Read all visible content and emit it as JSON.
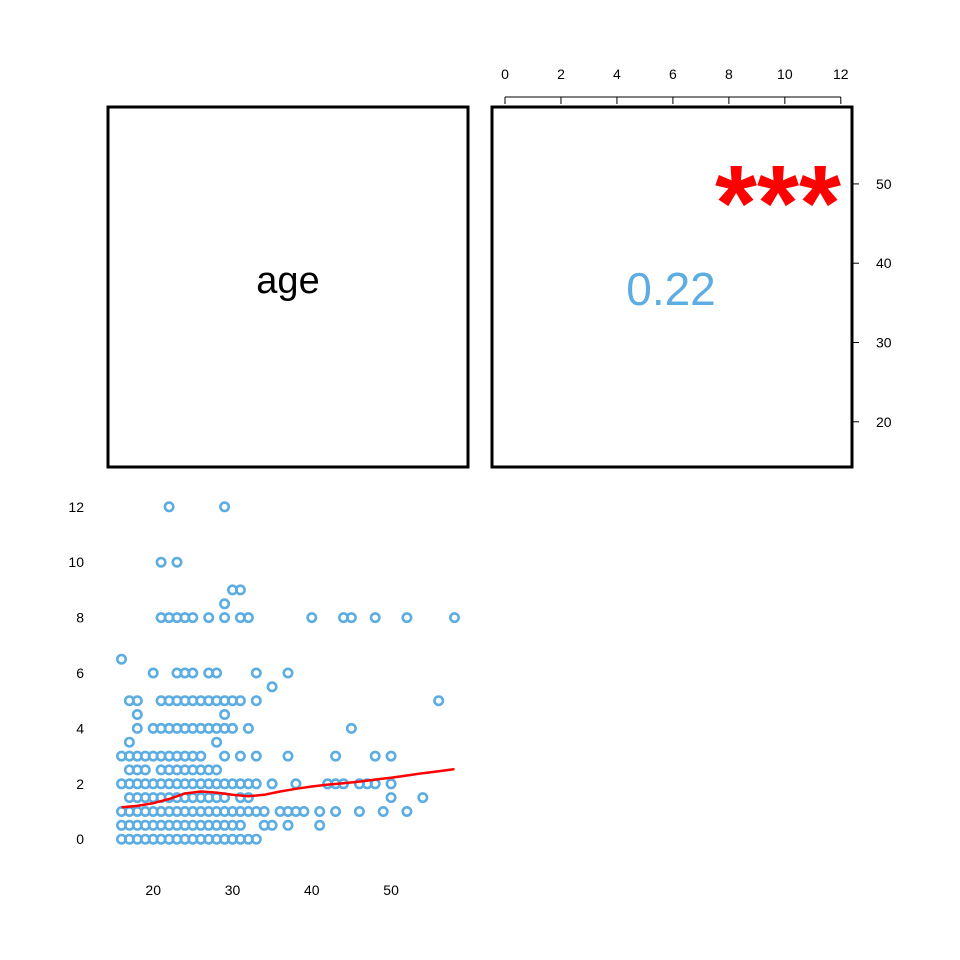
{
  "chart_data": [
    {
      "type": "text",
      "panel": "diagonal",
      "variable_label": "age"
    },
    {
      "type": "text",
      "panel": "upper-correlation",
      "correlation": "0.22",
      "significance": "***",
      "colors": {
        "correlation": "#5DADE2",
        "significance": "#FF0000"
      },
      "top_axis": {
        "ticks": [
          "0",
          "2",
          "4",
          "6",
          "8",
          "10",
          "12"
        ],
        "range": [
          0,
          12.4
        ]
      },
      "right_axis": {
        "ticks": [
          "20",
          "30",
          "40",
          "50"
        ],
        "range": [
          14.3,
          59.7
        ]
      }
    },
    {
      "type": "scatter",
      "panel": "lower-scatter",
      "xlim": [
        14.3,
        59.7
      ],
      "ylim": [
        -0.5,
        12.5
      ],
      "x_ticks": [
        "20",
        "30",
        "40",
        "50"
      ],
      "y_ticks": [
        "0",
        "2",
        "4",
        "6",
        "8",
        "10",
        "12"
      ],
      "grid": false,
      "colors": {
        "points": "#5DADE2",
        "smooth": "#FF0000"
      },
      "points": [
        [
          16,
          0
        ],
        [
          16,
          0.5
        ],
        [
          16,
          1
        ],
        [
          16,
          2
        ],
        [
          16,
          3
        ],
        [
          16,
          6.5
        ],
        [
          17,
          0
        ],
        [
          17,
          0.5
        ],
        [
          17,
          1
        ],
        [
          17,
          1.5
        ],
        [
          17,
          2
        ],
        [
          17,
          2.5
        ],
        [
          17,
          3
        ],
        [
          17,
          3.5
        ],
        [
          17,
          5
        ],
        [
          18,
          0
        ],
        [
          18,
          0.5
        ],
        [
          18,
          1
        ],
        [
          18,
          1.5
        ],
        [
          18,
          2
        ],
        [
          18,
          2.5
        ],
        [
          18,
          3
        ],
        [
          18,
          4
        ],
        [
          18,
          4.5
        ],
        [
          18,
          5
        ],
        [
          19,
          0
        ],
        [
          19,
          0.5
        ],
        [
          19,
          1
        ],
        [
          19,
          1.5
        ],
        [
          19,
          2
        ],
        [
          19,
          2.5
        ],
        [
          19,
          3
        ],
        [
          20,
          0
        ],
        [
          20,
          0.5
        ],
        [
          20,
          1
        ],
        [
          20,
          1.5
        ],
        [
          20,
          2
        ],
        [
          20,
          3
        ],
        [
          20,
          4
        ],
        [
          20,
          6
        ],
        [
          21,
          0
        ],
        [
          21,
          0.5
        ],
        [
          21,
          1
        ],
        [
          21,
          1.5
        ],
        [
          21,
          2
        ],
        [
          21,
          2.5
        ],
        [
          21,
          3
        ],
        [
          21,
          4
        ],
        [
          21,
          5
        ],
        [
          21,
          8
        ],
        [
          21,
          10
        ],
        [
          22,
          0
        ],
        [
          22,
          0.5
        ],
        [
          22,
          1
        ],
        [
          22,
          1.5
        ],
        [
          22,
          2
        ],
        [
          22,
          2.5
        ],
        [
          22,
          3
        ],
        [
          22,
          4
        ],
        [
          22,
          5
        ],
        [
          22,
          8
        ],
        [
          22,
          12
        ],
        [
          23,
          0
        ],
        [
          23,
          0.5
        ],
        [
          23,
          1
        ],
        [
          23,
          1.5
        ],
        [
          23,
          2
        ],
        [
          23,
          2.5
        ],
        [
          23,
          3
        ],
        [
          23,
          4
        ],
        [
          23,
          5
        ],
        [
          23,
          6
        ],
        [
          23,
          8
        ],
        [
          23,
          10
        ],
        [
          24,
          0
        ],
        [
          24,
          0.5
        ],
        [
          24,
          1
        ],
        [
          24,
          1.5
        ],
        [
          24,
          2
        ],
        [
          24,
          2.5
        ],
        [
          24,
          3
        ],
        [
          24,
          4
        ],
        [
          24,
          5
        ],
        [
          24,
          6
        ],
        [
          24,
          8
        ],
        [
          25,
          0
        ],
        [
          25,
          0.5
        ],
        [
          25,
          1
        ],
        [
          25,
          1.5
        ],
        [
          25,
          2
        ],
        [
          25,
          2.5
        ],
        [
          25,
          3
        ],
        [
          25,
          4
        ],
        [
          25,
          5
        ],
        [
          25,
          6
        ],
        [
          25,
          8
        ],
        [
          26,
          0
        ],
        [
          26,
          0.5
        ],
        [
          26,
          1
        ],
        [
          26,
          1.5
        ],
        [
          26,
          2
        ],
        [
          26,
          2.5
        ],
        [
          26,
          3
        ],
        [
          26,
          4
        ],
        [
          26,
          5
        ],
        [
          27,
          0
        ],
        [
          27,
          0.5
        ],
        [
          27,
          1
        ],
        [
          27,
          1.5
        ],
        [
          27,
          2
        ],
        [
          27,
          2.5
        ],
        [
          27,
          4
        ],
        [
          27,
          5
        ],
        [
          27,
          6
        ],
        [
          27,
          8
        ],
        [
          28,
          0
        ],
        [
          28,
          0.5
        ],
        [
          28,
          1
        ],
        [
          28,
          1.5
        ],
        [
          28,
          2
        ],
        [
          28,
          2.5
        ],
        [
          28,
          3.5
        ],
        [
          28,
          4
        ],
        [
          28,
          5
        ],
        [
          28,
          6
        ],
        [
          29,
          0
        ],
        [
          29,
          0.5
        ],
        [
          29,
          1
        ],
        [
          29,
          1.5
        ],
        [
          29,
          2
        ],
        [
          29,
          3
        ],
        [
          29,
          4
        ],
        [
          29,
          4.5
        ],
        [
          29,
          5
        ],
        [
          29,
          8
        ],
        [
          29,
          8.5
        ],
        [
          29,
          12
        ],
        [
          30,
          0
        ],
        [
          30,
          0.5
        ],
        [
          30,
          1
        ],
        [
          30,
          2
        ],
        [
          30,
          4
        ],
        [
          30,
          5
        ],
        [
          30,
          9
        ],
        [
          31,
          0
        ],
        [
          31,
          0.5
        ],
        [
          31,
          1
        ],
        [
          31,
          1.5
        ],
        [
          31,
          2
        ],
        [
          31,
          3
        ],
        [
          31,
          5
        ],
        [
          31,
          8
        ],
        [
          31,
          9
        ],
        [
          32,
          0
        ],
        [
          32,
          1
        ],
        [
          32,
          1.5
        ],
        [
          32,
          2
        ],
        [
          32,
          4
        ],
        [
          32,
          8
        ],
        [
          33,
          0
        ],
        [
          33,
          1
        ],
        [
          33,
          2
        ],
        [
          33,
          3
        ],
        [
          33,
          5
        ],
        [
          33,
          6
        ],
        [
          34,
          0.5
        ],
        [
          34,
          1
        ],
        [
          35,
          0.5
        ],
        [
          35,
          2
        ],
        [
          35,
          5.5
        ],
        [
          36,
          1
        ],
        [
          37,
          0.5
        ],
        [
          37,
          1
        ],
        [
          37,
          3
        ],
        [
          37,
          6
        ],
        [
          38,
          1
        ],
        [
          38,
          2
        ],
        [
          39,
          1
        ],
        [
          40,
          8
        ],
        [
          41,
          0.5
        ],
        [
          41,
          1
        ],
        [
          42,
          2
        ],
        [
          43,
          1
        ],
        [
          43,
          2
        ],
        [
          43,
          3
        ],
        [
          44,
          2
        ],
        [
          44,
          8
        ],
        [
          45,
          4
        ],
        [
          45,
          8
        ],
        [
          46,
          1
        ],
        [
          46,
          2
        ],
        [
          47,
          2
        ],
        [
          48,
          2
        ],
        [
          48,
          3
        ],
        [
          48,
          8
        ],
        [
          49,
          1
        ],
        [
          50,
          1.5
        ],
        [
          50,
          2
        ],
        [
          50,
          3
        ],
        [
          52,
          1
        ],
        [
          52,
          8
        ],
        [
          54,
          1.5
        ],
        [
          56,
          5
        ],
        [
          58,
          8
        ]
      ],
      "smooth": [
        [
          16,
          1.15
        ],
        [
          18,
          1.2
        ],
        [
          20,
          1.3
        ],
        [
          22,
          1.45
        ],
        [
          24,
          1.65
        ],
        [
          26,
          1.72
        ],
        [
          28,
          1.68
        ],
        [
          30,
          1.6
        ],
        [
          32,
          1.55
        ],
        [
          34,
          1.6
        ],
        [
          36,
          1.72
        ],
        [
          38,
          1.82
        ],
        [
          40,
          1.9
        ],
        [
          42,
          1.97
        ],
        [
          44,
          2.02
        ],
        [
          46,
          2.08
        ],
        [
          48,
          2.15
        ],
        [
          50,
          2.22
        ],
        [
          52,
          2.3
        ],
        [
          54,
          2.38
        ],
        [
          56,
          2.45
        ],
        [
          58,
          2.53
        ]
      ]
    }
  ]
}
